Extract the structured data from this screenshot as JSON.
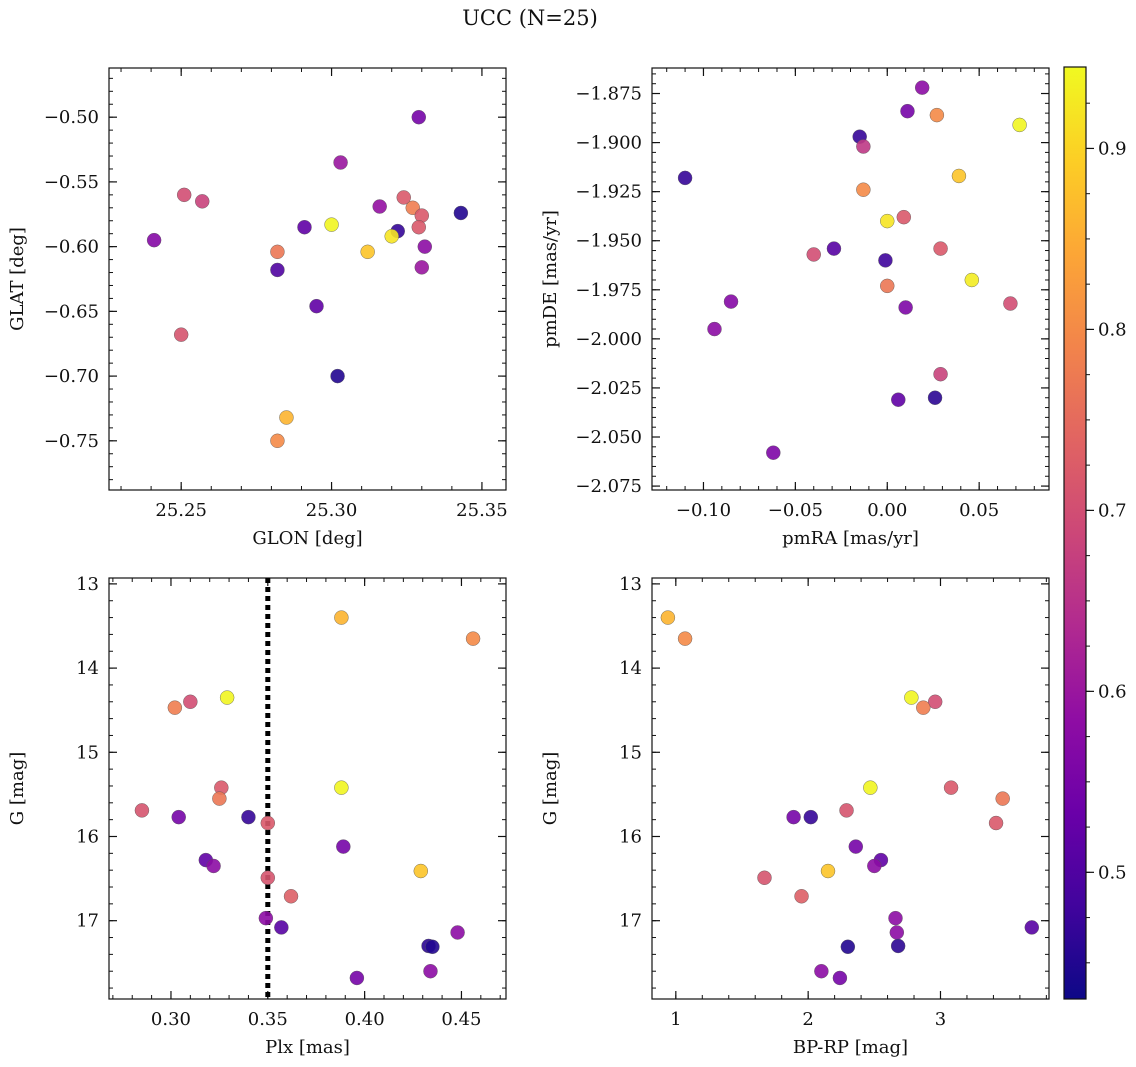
{
  "title": "UCC (N=25)",
  "colorbar": {
    "colormap": "plasma",
    "range": [
      0.43,
      0.945
    ],
    "ticks": [
      0.5,
      0.6,
      0.7,
      0.8,
      0.9
    ],
    "tick_labels": [
      "0.5",
      "0.6",
      "0.7",
      "0.8",
      "0.9"
    ]
  },
  "vline": {
    "panel": 2,
    "x": 0.35,
    "style": "dotted",
    "color": "#000000"
  },
  "chart_data": [
    {
      "type": "scatter",
      "xlabel": "GLON [deg]",
      "ylabel": "GLAT [deg]",
      "xlim": [
        25.226,
        25.358
      ],
      "ylim": [
        -0.788,
        -0.462
      ],
      "y_inverted": false,
      "xticks": [
        25.25,
        25.3,
        25.35
      ],
      "xtick_labels": [
        "25.25",
        "25.30",
        "25.35"
      ],
      "yticks": [
        -0.5,
        -0.55,
        -0.6,
        -0.65,
        -0.7,
        -0.75
      ],
      "ytick_labels": [
        "−0.50",
        "−0.55",
        "−0.60",
        "−0.65",
        "−0.70",
        "−0.75"
      ],
      "points": [
        {
          "x": 25.329,
          "y": -0.5,
          "c": 0.55
        },
        {
          "x": 25.303,
          "y": -0.535,
          "c": 0.6
        },
        {
          "x": 25.251,
          "y": -0.56,
          "c": 0.7
        },
        {
          "x": 25.257,
          "y": -0.565,
          "c": 0.68
        },
        {
          "x": 25.324,
          "y": -0.562,
          "c": 0.72
        },
        {
          "x": 25.316,
          "y": -0.569,
          "c": 0.59
        },
        {
          "x": 25.327,
          "y": -0.57,
          "c": 0.78
        },
        {
          "x": 25.33,
          "y": -0.576,
          "c": 0.72
        },
        {
          "x": 25.343,
          "y": -0.574,
          "c": 0.45
        },
        {
          "x": 25.3,
          "y": -0.583,
          "c": 0.94
        },
        {
          "x": 25.291,
          "y": -0.585,
          "c": 0.52
        },
        {
          "x": 25.329,
          "y": -0.585,
          "c": 0.72
        },
        {
          "x": 25.322,
          "y": -0.588,
          "c": 0.47
        },
        {
          "x": 25.32,
          "y": -0.592,
          "c": 0.92
        },
        {
          "x": 25.241,
          "y": -0.595,
          "c": 0.57
        },
        {
          "x": 25.331,
          "y": -0.6,
          "c": 0.58
        },
        {
          "x": 25.312,
          "y": -0.604,
          "c": 0.88
        },
        {
          "x": 25.282,
          "y": -0.604,
          "c": 0.77
        },
        {
          "x": 25.282,
          "y": -0.618,
          "c": 0.5
        },
        {
          "x": 25.33,
          "y": -0.616,
          "c": 0.6
        },
        {
          "x": 25.295,
          "y": -0.646,
          "c": 0.52
        },
        {
          "x": 25.25,
          "y": -0.668,
          "c": 0.71
        },
        {
          "x": 25.302,
          "y": -0.7,
          "c": 0.45
        },
        {
          "x": 25.285,
          "y": -0.732,
          "c": 0.86
        },
        {
          "x": 25.282,
          "y": -0.75,
          "c": 0.8
        }
      ]
    },
    {
      "type": "scatter",
      "xlabel": "pmRA [mas/yr]",
      "ylabel": "pmDE [mas/yr]",
      "xlim": [
        -0.128,
        0.088
      ],
      "ylim": [
        -2.077,
        -1.862
      ],
      "y_inverted": false,
      "xticks": [
        -0.1,
        -0.05,
        0.0,
        0.05
      ],
      "xtick_labels": [
        "−0.10",
        "−0.05",
        "0.00",
        "0.05"
      ],
      "yticks": [
        -1.875,
        -1.9,
        -1.925,
        -1.95,
        -1.975,
        -2.0,
        -2.025,
        -2.05,
        -2.075
      ],
      "ytick_labels": [
        "−1.875",
        "−1.900",
        "−1.925",
        "−1.950",
        "−1.975",
        "−2.000",
        "−2.025",
        "−2.050",
        "−2.075"
      ],
      "points": [
        {
          "x": 0.019,
          "y": -1.872,
          "c": 0.58
        },
        {
          "x": 0.011,
          "y": -1.884,
          "c": 0.55
        },
        {
          "x": 0.027,
          "y": -1.886,
          "c": 0.8
        },
        {
          "x": 0.072,
          "y": -1.891,
          "c": 0.94
        },
        {
          "x": -0.015,
          "y": -1.897,
          "c": 0.47
        },
        {
          "x": -0.013,
          "y": -1.902,
          "c": 0.66
        },
        {
          "x": -0.11,
          "y": -1.918,
          "c": 0.47
        },
        {
          "x": 0.039,
          "y": -1.917,
          "c": 0.88
        },
        {
          "x": -0.013,
          "y": -1.924,
          "c": 0.8
        },
        {
          "x": 0.009,
          "y": -1.938,
          "c": 0.72
        },
        {
          "x": 0.0,
          "y": -1.94,
          "c": 0.92
        },
        {
          "x": -0.029,
          "y": -1.954,
          "c": 0.51
        },
        {
          "x": 0.029,
          "y": -1.954,
          "c": 0.72
        },
        {
          "x": -0.04,
          "y": -1.957,
          "c": 0.7
        },
        {
          "x": -0.001,
          "y": -1.96,
          "c": 0.48
        },
        {
          "x": 0.046,
          "y": -1.97,
          "c": 0.93
        },
        {
          "x": 0.0,
          "y": -1.973,
          "c": 0.77
        },
        {
          "x": -0.085,
          "y": -1.981,
          "c": 0.57
        },
        {
          "x": 0.067,
          "y": -1.982,
          "c": 0.7
        },
        {
          "x": 0.01,
          "y": -1.984,
          "c": 0.56
        },
        {
          "x": -0.094,
          "y": -1.995,
          "c": 0.58
        },
        {
          "x": 0.029,
          "y": -2.018,
          "c": 0.68
        },
        {
          "x": 0.026,
          "y": -2.03,
          "c": 0.46
        },
        {
          "x": 0.006,
          "y": -2.031,
          "c": 0.52
        },
        {
          "x": -0.062,
          "y": -2.058,
          "c": 0.56
        }
      ]
    },
    {
      "type": "scatter",
      "xlabel": "Plx [mas]",
      "ylabel": "G [mag]",
      "xlim": [
        0.268,
        0.473
      ],
      "ylim": [
        12.93,
        17.93
      ],
      "y_inverted": true,
      "xticks": [
        0.3,
        0.35,
        0.4,
        0.45
      ],
      "xtick_labels": [
        "0.30",
        "0.35",
        "0.40",
        "0.45"
      ],
      "yticks": [
        13,
        14,
        15,
        16,
        17
      ],
      "ytick_labels": [
        "13",
        "14",
        "15",
        "16",
        "17"
      ],
      "points": [
        {
          "x": 0.388,
          "y": 13.4,
          "c": 0.86
        },
        {
          "x": 0.456,
          "y": 13.65,
          "c": 0.8
        },
        {
          "x": 0.329,
          "y": 14.35,
          "c": 0.94
        },
        {
          "x": 0.31,
          "y": 14.4,
          "c": 0.7
        },
        {
          "x": 0.302,
          "y": 14.47,
          "c": 0.78
        },
        {
          "x": 0.388,
          "y": 15.42,
          "c": 0.94
        },
        {
          "x": 0.326,
          "y": 15.42,
          "c": 0.72
        },
        {
          "x": 0.325,
          "y": 15.55,
          "c": 0.77
        },
        {
          "x": 0.285,
          "y": 15.69,
          "c": 0.71
        },
        {
          "x": 0.34,
          "y": 15.77,
          "c": 0.47
        },
        {
          "x": 0.304,
          "y": 15.77,
          "c": 0.55
        },
        {
          "x": 0.35,
          "y": 15.84,
          "c": 0.72
        },
        {
          "x": 0.389,
          "y": 16.12,
          "c": 0.55
        },
        {
          "x": 0.318,
          "y": 16.28,
          "c": 0.52
        },
        {
          "x": 0.322,
          "y": 16.35,
          "c": 0.58
        },
        {
          "x": 0.429,
          "y": 16.41,
          "c": 0.88
        },
        {
          "x": 0.35,
          "y": 16.49,
          "c": 0.71
        },
        {
          "x": 0.362,
          "y": 16.71,
          "c": 0.73
        },
        {
          "x": 0.349,
          "y": 16.97,
          "c": 0.58
        },
        {
          "x": 0.357,
          "y": 17.08,
          "c": 0.51
        },
        {
          "x": 0.448,
          "y": 17.14,
          "c": 0.58
        },
        {
          "x": 0.433,
          "y": 17.3,
          "c": 0.46
        },
        {
          "x": 0.435,
          "y": 17.31,
          "c": 0.45
        },
        {
          "x": 0.434,
          "y": 17.6,
          "c": 0.58
        },
        {
          "x": 0.396,
          "y": 17.68,
          "c": 0.55
        }
      ]
    },
    {
      "type": "scatter",
      "xlabel": "BP-RP [mag]",
      "ylabel": "G [mag]",
      "xlim": [
        0.82,
        3.82
      ],
      "ylim": [
        12.93,
        17.93
      ],
      "y_inverted": true,
      "xticks": [
        1,
        2,
        3
      ],
      "xtick_labels": [
        "1",
        "2",
        "3"
      ],
      "yticks": [
        13,
        14,
        15,
        16,
        17
      ],
      "ytick_labels": [
        "13",
        "14",
        "15",
        "16",
        "17"
      ],
      "points": [
        {
          "x": 0.94,
          "y": 13.4,
          "c": 0.86
        },
        {
          "x": 1.07,
          "y": 13.65,
          "c": 0.8
        },
        {
          "x": 2.78,
          "y": 14.35,
          "c": 0.94
        },
        {
          "x": 2.96,
          "y": 14.4,
          "c": 0.7
        },
        {
          "x": 2.87,
          "y": 14.47,
          "c": 0.78
        },
        {
          "x": 2.47,
          "y": 15.42,
          "c": 0.94
        },
        {
          "x": 3.08,
          "y": 15.42,
          "c": 0.72
        },
        {
          "x": 3.47,
          "y": 15.55,
          "c": 0.77
        },
        {
          "x": 2.29,
          "y": 15.69,
          "c": 0.71
        },
        {
          "x": 2.02,
          "y": 15.77,
          "c": 0.47
        },
        {
          "x": 1.89,
          "y": 15.77,
          "c": 0.55
        },
        {
          "x": 3.42,
          "y": 15.84,
          "c": 0.72
        },
        {
          "x": 2.36,
          "y": 16.12,
          "c": 0.55
        },
        {
          "x": 2.55,
          "y": 16.28,
          "c": 0.52
        },
        {
          "x": 2.5,
          "y": 16.35,
          "c": 0.58
        },
        {
          "x": 2.15,
          "y": 16.41,
          "c": 0.88
        },
        {
          "x": 1.67,
          "y": 16.49,
          "c": 0.71
        },
        {
          "x": 1.95,
          "y": 16.71,
          "c": 0.73
        },
        {
          "x": 2.66,
          "y": 16.97,
          "c": 0.58
        },
        {
          "x": 3.69,
          "y": 17.08,
          "c": 0.51
        },
        {
          "x": 2.67,
          "y": 17.14,
          "c": 0.58
        },
        {
          "x": 2.68,
          "y": 17.3,
          "c": 0.46
        },
        {
          "x": 2.3,
          "y": 17.31,
          "c": 0.45
        },
        {
          "x": 2.1,
          "y": 17.6,
          "c": 0.58
        },
        {
          "x": 2.24,
          "y": 17.68,
          "c": 0.55
        }
      ]
    }
  ]
}
